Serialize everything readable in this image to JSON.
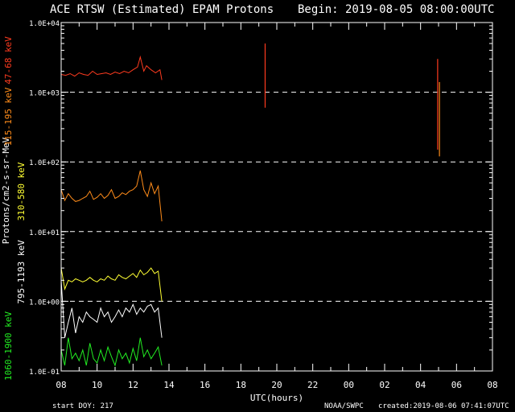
{
  "chart_data": {
    "type": "line",
    "title": "ACE RTSW (Estimated) EPAM Protons",
    "begin_label": "Begin: 2019-08-05 08:00:00UTC",
    "xlabel": "UTC(hours)",
    "ylabel": "Protons/cm2-s-sr-MeV",
    "x_unit": "hours since 2019-08-05 08:00 UTC",
    "xlim": [
      0,
      24
    ],
    "x_ticks": [
      {
        "x": 0,
        "label": "08"
      },
      {
        "x": 2,
        "label": "10"
      },
      {
        "x": 4,
        "label": "12"
      },
      {
        "x": 6,
        "label": "14"
      },
      {
        "x": 8,
        "label": "16"
      },
      {
        "x": 10,
        "label": "18"
      },
      {
        "x": 12,
        "label": "20"
      },
      {
        "x": 14,
        "label": "22"
      },
      {
        "x": 16,
        "label": "00"
      },
      {
        "x": 18,
        "label": "02"
      },
      {
        "x": 20,
        "label": "04"
      },
      {
        "x": 22,
        "label": "06"
      },
      {
        "x": 24,
        "label": "08"
      }
    ],
    "y_scale": "log",
    "ylim": [
      0.1,
      10000
    ],
    "y_ticks": [
      {
        "y": 10000,
        "label": "1.0E+04"
      },
      {
        "y": 1000,
        "label": "1.0E+03"
      },
      {
        "y": 100,
        "label": "1.0E+02"
      },
      {
        "y": 10,
        "label": "1.0E+01"
      },
      {
        "y": 1,
        "label": "1.0E+00"
      },
      {
        "y": 0.1,
        "label": "1.0E-01"
      }
    ],
    "dashed_gridlines_at": [
      1000,
      100,
      10,
      1
    ],
    "series": [
      {
        "name": "47-68 keV",
        "color": "#ff3b1f",
        "x": [
          0,
          0.25,
          0.5,
          0.75,
          1,
          1.25,
          1.5,
          1.75,
          2,
          2.25,
          2.5,
          2.75,
          3,
          3.25,
          3.5,
          3.75,
          4,
          4.25,
          4.4,
          4.6,
          4.75,
          5,
          5.25,
          5.5,
          5.6
        ],
        "y": [
          1800,
          1750,
          1850,
          1700,
          1900,
          1800,
          1750,
          2000,
          1800,
          1850,
          1900,
          1800,
          1950,
          1850,
          2000,
          1900,
          2100,
          2300,
          3200,
          2000,
          2400,
          2100,
          1900,
          2100,
          1500
        ]
      },
      {
        "name": "115-195 keV",
        "color": "#ff8c1a",
        "x": [
          0,
          0.2,
          0.4,
          0.6,
          0.8,
          1,
          1.2,
          1.4,
          1.6,
          1.8,
          2,
          2.2,
          2.4,
          2.6,
          2.8,
          3,
          3.2,
          3.4,
          3.6,
          3.8,
          4,
          4.2,
          4.4,
          4.6,
          4.8,
          5,
          5.2,
          5.4,
          5.6
        ],
        "y": [
          40,
          28,
          35,
          30,
          27,
          28,
          30,
          32,
          38,
          29,
          31,
          35,
          30,
          33,
          40,
          30,
          32,
          36,
          34,
          38,
          40,
          45,
          75,
          40,
          32,
          50,
          35,
          45,
          14
        ]
      },
      {
        "name": "310-580 keV",
        "color": "#ffff33",
        "x": [
          0,
          0.2,
          0.4,
          0.6,
          0.8,
          1,
          1.2,
          1.4,
          1.6,
          1.8,
          2,
          2.2,
          2.4,
          2.6,
          2.8,
          3,
          3.2,
          3.4,
          3.6,
          3.8,
          4,
          4.2,
          4.4,
          4.6,
          4.8,
          5,
          5.2,
          5.4,
          5.6
        ],
        "y": [
          3,
          1.5,
          2,
          1.9,
          2.1,
          2,
          1.9,
          2,
          2.2,
          2,
          1.9,
          2.1,
          2,
          2.3,
          2.1,
          2,
          2.4,
          2.2,
          2.1,
          2.3,
          2.5,
          2.2,
          2.8,
          2.4,
          2.6,
          3,
          2.5,
          2.7,
          1
        ]
      },
      {
        "name": "795-1193 keV",
        "color": "#ffffff",
        "x": [
          0,
          0.2,
          0.4,
          0.6,
          0.8,
          1,
          1.2,
          1.4,
          1.6,
          1.8,
          2,
          2.2,
          2.4,
          2.6,
          2.8,
          3,
          3.2,
          3.4,
          3.6,
          3.8,
          4,
          4.2,
          4.4,
          4.6,
          4.8,
          5,
          5.2,
          5.4,
          5.6
        ],
        "y": [
          2,
          0.3,
          0.5,
          0.8,
          0.35,
          0.6,
          0.5,
          0.7,
          0.6,
          0.55,
          0.5,
          0.8,
          0.6,
          0.7,
          0.5,
          0.6,
          0.75,
          0.6,
          0.8,
          0.7,
          0.9,
          0.65,
          0.8,
          0.7,
          0.85,
          0.9,
          0.7,
          0.8,
          0.3
        ]
      },
      {
        "name": "1060-1900 keV",
        "color": "#22ee22",
        "x": [
          0,
          0.2,
          0.4,
          0.6,
          0.8,
          1,
          1.2,
          1.4,
          1.6,
          1.8,
          2,
          2.2,
          2.4,
          2.6,
          2.8,
          3,
          3.2,
          3.4,
          3.6,
          3.8,
          4,
          4.2,
          4.4,
          4.6,
          4.8,
          5,
          5.2,
          5.4,
          5.6
        ],
        "y": [
          0.2,
          0.12,
          0.3,
          0.15,
          0.18,
          0.14,
          0.2,
          0.12,
          0.25,
          0.15,
          0.13,
          0.2,
          0.14,
          0.22,
          0.16,
          0.12,
          0.2,
          0.15,
          0.18,
          0.13,
          0.21,
          0.14,
          0.3,
          0.16,
          0.2,
          0.15,
          0.18,
          0.22,
          0.12
        ]
      }
    ],
    "spikes": [
      {
        "color": "#ff3b1f",
        "x": 11.35,
        "y1": 600,
        "y2": 5000
      },
      {
        "color": "#ff3b1f",
        "x": 20.95,
        "y1": 150,
        "y2": 3000
      },
      {
        "color": "#ff8c1a",
        "x": 21.05,
        "y1": 120,
        "y2": 1400
      }
    ]
  },
  "footer": {
    "start_doy": "start DOY:  217",
    "source": "NOAA/SWPC",
    "created": "created:2019-08-06 07:41:07UTC"
  }
}
